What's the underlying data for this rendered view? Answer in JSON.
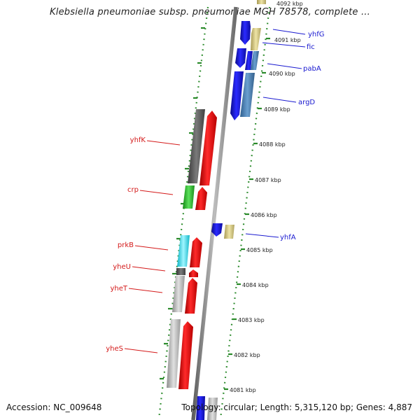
{
  "header": {
    "title": "Klebsiella pneumoniae subsp. pneumoniae MGH 78578, complete ..."
  },
  "footer": {
    "accession": "Accession: NC_009648",
    "topology": "Topology: circular; Length: 5,315,120 bp; Genes: 4,887"
  },
  "map": {
    "colors": {
      "backbone": "#8c8c8c",
      "tick_dots": "#2a8a2a",
      "forward_label": "#1a1ad0",
      "reverse_label": "#d41a1a"
    },
    "kbp_labels": [
      "4092 kbp",
      "4091 kbp",
      "4090 kbp",
      "4089 kbp",
      "4088 kbp",
      "4087 kbp",
      "4086 kbp",
      "4085 kbp",
      "4084 kbp",
      "4083 kbp",
      "4082 kbp",
      "4081 kbp"
    ],
    "forward_genes": [
      {
        "name": "yhfG"
      },
      {
        "name": "fic"
      },
      {
        "name": "pabA"
      },
      {
        "name": "argD"
      },
      {
        "name": "yhfA"
      }
    ],
    "reverse_genes": [
      {
        "name": "yhfK"
      },
      {
        "name": "crp"
      },
      {
        "name": "prkB"
      },
      {
        "name": "yheU"
      },
      {
        "name": "yheT"
      },
      {
        "name": "yheS"
      }
    ]
  }
}
